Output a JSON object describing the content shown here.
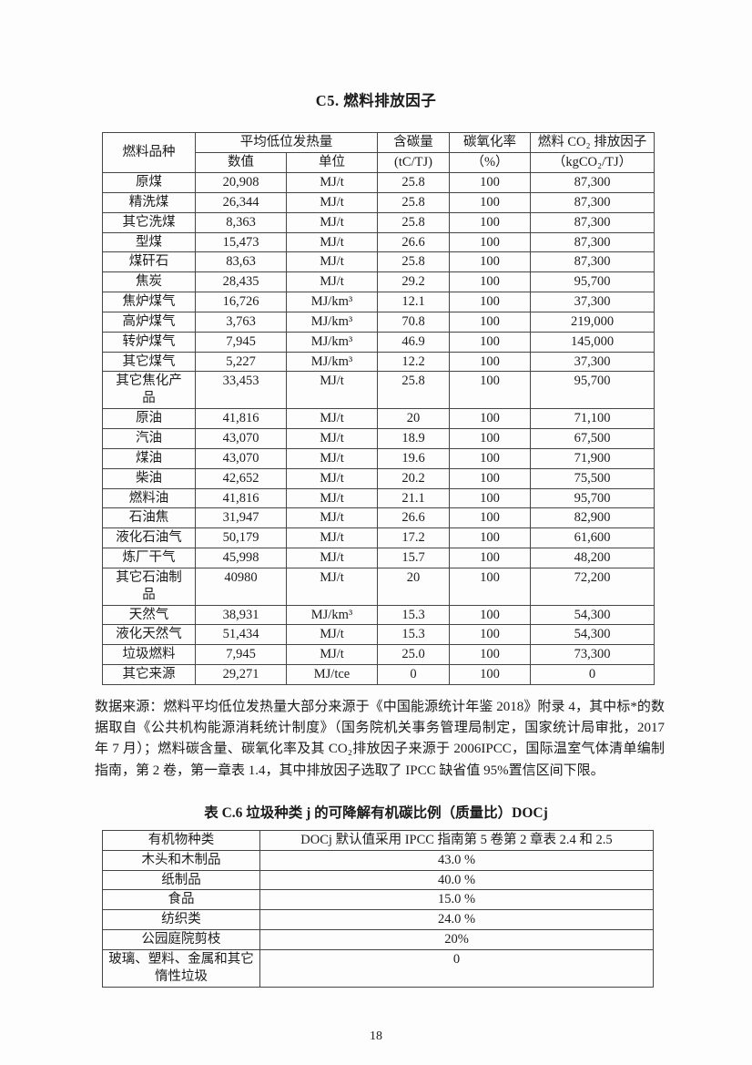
{
  "page": {
    "number": "18"
  },
  "section1": {
    "title": "C5. 燃料排放因子",
    "table": {
      "header": {
        "fuel": "燃料品种",
        "heating": "平均低位发热量",
        "value": "数值",
        "unit": "单位",
        "carbon_l1": "含碳量",
        "carbon_l2": "(tC/TJ)",
        "oxid_l1": "碳氧化率",
        "oxid_l2": "（%）",
        "ef_l1": "燃料 CO₂ 排放因子",
        "ef_l2": "（kgCO₂/TJ）"
      },
      "rows": [
        [
          "原煤",
          "20,908",
          "MJ/t",
          "25.8",
          "100",
          "87,300"
        ],
        [
          "精洗煤",
          "26,344",
          "MJ/t",
          "25.8",
          "100",
          "87,300"
        ],
        [
          "其它洗煤",
          "8,363",
          "MJ/t",
          "25.8",
          "100",
          "87,300"
        ],
        [
          "型煤",
          "15,473",
          "MJ/t",
          "26.6",
          "100",
          "87,300"
        ],
        [
          "煤矸石",
          "83,63",
          "MJ/t",
          "25.8",
          "100",
          "87,300"
        ],
        [
          "焦炭",
          "28,435",
          "MJ/t",
          "29.2",
          "100",
          "95,700"
        ],
        [
          "焦炉煤气",
          "16,726",
          "MJ/km³",
          "12.1",
          "100",
          "37,300"
        ],
        [
          "高炉煤气",
          "3,763",
          "MJ/km³",
          "70.8",
          "100",
          "219,000"
        ],
        [
          "转炉煤气",
          "7,945",
          "MJ/km³",
          "46.9",
          "100",
          "145,000"
        ],
        [
          "其它煤气",
          "5,227",
          "MJ/km³",
          "12.2",
          "100",
          "37,300"
        ],
        [
          "其它焦化产\n品",
          "33,453",
          "MJ/t",
          "25.8",
          "100",
          "95,700"
        ],
        [
          "原油",
          "41,816",
          "MJ/t",
          "20",
          "100",
          "71,100"
        ],
        [
          "汽油",
          "43,070",
          "MJ/t",
          "18.9",
          "100",
          "67,500"
        ],
        [
          "煤油",
          "43,070",
          "MJ/t",
          "19.6",
          "100",
          "71,900"
        ],
        [
          "柴油",
          "42,652",
          "MJ/t",
          "20.2",
          "100",
          "75,500"
        ],
        [
          "燃料油",
          "41,816",
          "MJ/t",
          "21.1",
          "100",
          "95,700"
        ],
        [
          "石油焦",
          "31,947",
          "MJ/t",
          "26.6",
          "100",
          "82,900"
        ],
        [
          "液化石油气",
          "50,179",
          "MJ/t",
          "17.2",
          "100",
          "61,600"
        ],
        [
          "炼厂干气",
          "45,998",
          "MJ/t",
          "15.7",
          "100",
          "48,200"
        ],
        [
          "其它石油制\n品",
          "40980",
          "MJ/t",
          "20",
          "100",
          "72,200"
        ],
        [
          "天然气",
          "38,931",
          "MJ/km³",
          "15.3",
          "100",
          "54,300"
        ],
        [
          "液化天然气",
          "51,434",
          "MJ/t",
          "15.3",
          "100",
          "54,300"
        ],
        [
          "垃圾燃料",
          "7,945",
          "MJ/t",
          "25.0",
          "100",
          "73,300"
        ],
        [
          "其它来源",
          "29,271",
          "MJ/tce",
          "0",
          "100",
          "0"
        ]
      ]
    }
  },
  "source_note": "数据来源：燃料平均低位发热量大部分来源于《中国能源统计年鉴 2018》附录 4，其中标*的数据取自《公共机构能源消耗统计制度》（国务院机关事务管理局制定，国家统计局审批，2017 年 7 月）；燃料碳含量、碳氧化率及其 CO₂排放因子来源于 2006IPCC，国际温室气体清单编制指南，第 2 卷，第一章表 1.4，其中排放因子选取了 IPCC 缺省值 95%置信区间下限。",
  "section2": {
    "title": "表 C.6 垃圾种类 j 的可降解有机碳比例（质量比）DOCj",
    "table": {
      "header": [
        "有机物种类",
        "DOCj 默认值采用 IPCC 指南第 5 卷第 2 章表 2.4 和 2.5"
      ],
      "rows": [
        [
          "木头和木制品",
          "43.0 %"
        ],
        [
          "纸制品",
          "40.0 %"
        ],
        [
          "食品",
          "15.0 %"
        ],
        [
          "纺织类",
          "24.0 %"
        ],
        [
          "公园庭院剪枝",
          "20%"
        ],
        [
          "玻璃、塑料、金属和其它\n惰性垃圾",
          "0"
        ]
      ]
    }
  }
}
